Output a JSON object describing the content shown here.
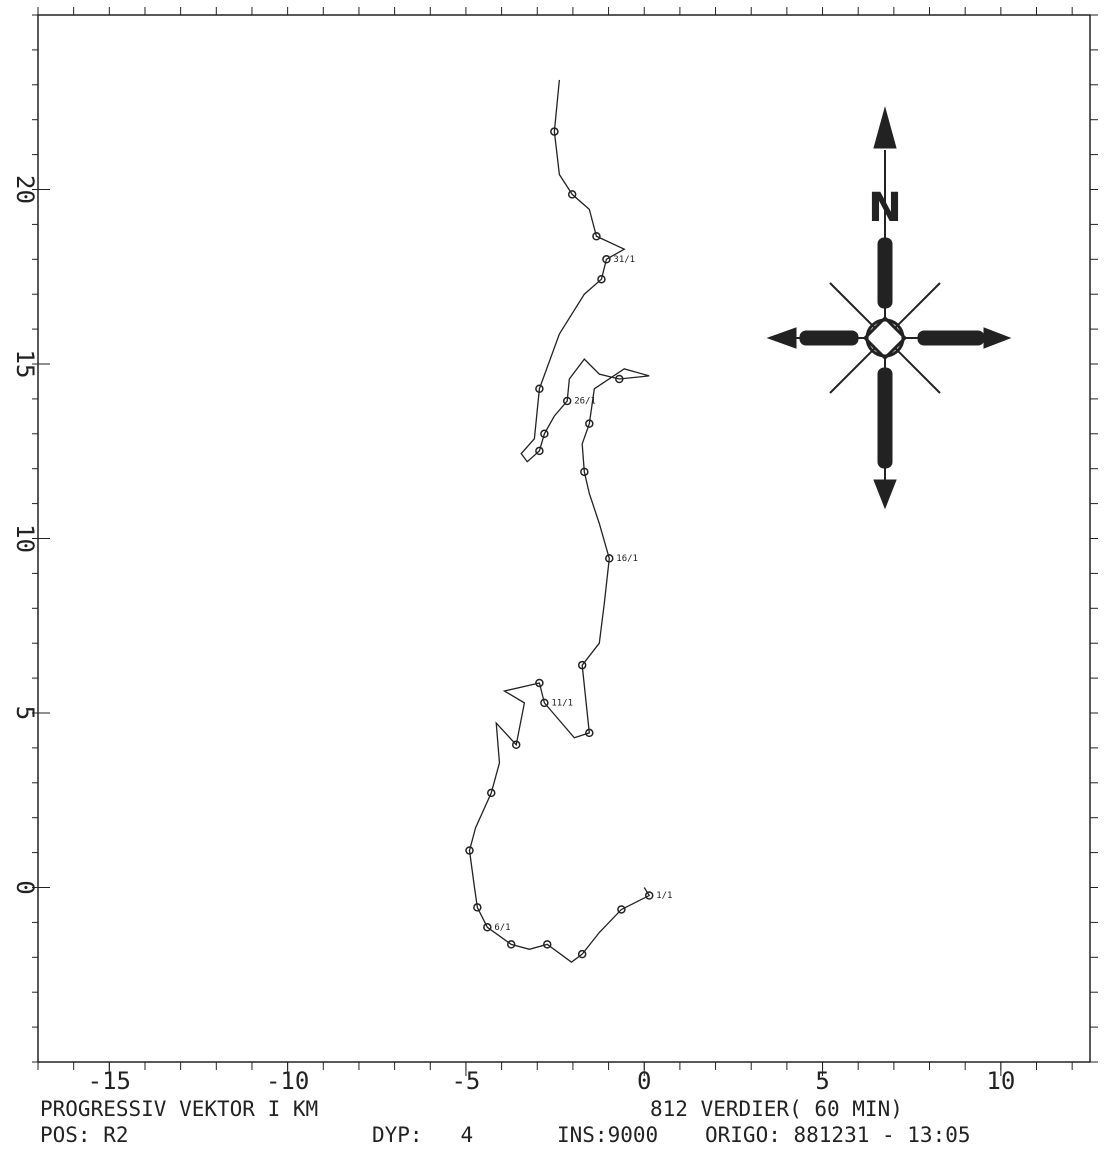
{
  "chart_data": {
    "type": "line",
    "color": "#222",
    "xlim": [
      -17,
      12.5
    ],
    "ylim": [
      -5,
      25
    ],
    "xticks": [
      -15,
      -10,
      -5,
      0,
      5,
      10
    ],
    "yticks": [
      0,
      5,
      10,
      15,
      20
    ],
    "x": [
      0,
      0.14,
      -0.64,
      -1.26,
      -1.74,
      -2.04,
      -2.72,
      -3.22,
      -3.73,
      -4.4,
      -4.68,
      -4.76,
      -4.9,
      -4.73,
      -4.29,
      -4.06,
      -4.15,
      -3.59,
      -3.36,
      -3.92,
      -2.94,
      -2.8,
      -1.96,
      -1.54,
      -1.74,
      -1.26,
      -1.12,
      -0.98,
      -1.26,
      -1.54,
      -1.68,
      -1.74,
      -1.54,
      -1.4,
      -0.56,
      0.14,
      -0.7,
      -1.26,
      -1.68,
      -2.1,
      -2.16,
      -2.52,
      -2.8,
      -2.94,
      -3.28,
      -3.45,
      -3.08,
      -2.94,
      -2.38,
      -1.68,
      -1.2,
      -1.06,
      -0.56,
      -1.34,
      -1.54,
      -2.02,
      -2.38,
      -2.52,
      -2.38
    ],
    "y": [
      0,
      -0.23,
      -0.63,
      -1.29,
      -1.91,
      -2.14,
      -1.63,
      -1.77,
      -1.63,
      -1.14,
      -0.57,
      0,
      1.06,
      1.71,
      2.71,
      3.57,
      4.71,
      4.09,
      5.29,
      5.63,
      5.86,
      5.29,
      4.29,
      4.43,
      6.37,
      7,
      8.14,
      9.43,
      10.43,
      11.29,
      11.91,
      12.71,
      13.29,
      14.29,
      14.86,
      14.66,
      14.57,
      14.71,
      15.14,
      14.57,
      13.94,
      13.51,
      13,
      12.51,
      12.2,
      12.43,
      12.86,
      14.29,
      15.86,
      17,
      17.43,
      18,
      18.29,
      18.66,
      19.43,
      19.86,
      20.43,
      21.66,
      23.14
    ],
    "markers": {
      "x": [
        0.14,
        -0.64,
        -1.74,
        -2.72,
        -3.73,
        -4.4,
        -4.68,
        -4.9,
        -4.29,
        -3.59,
        -2.94,
        -2.8,
        -1.54,
        -1.74,
        -0.98,
        -1.68,
        -1.54,
        -2.16,
        -2.8,
        -2.94,
        -2.94,
        -1.06,
        -1.34,
        -2.02,
        -2.52,
        -1.2,
        -0.7
      ],
      "y": [
        -0.23,
        -0.63,
        -1.91,
        -1.63,
        -1.63,
        -1.14,
        -0.57,
        1.06,
        2.71,
        4.09,
        5.86,
        5.29,
        4.43,
        6.37,
        9.43,
        11.91,
        13.29,
        13.94,
        13,
        12.51,
        14.29,
        18,
        18.66,
        19.86,
        21.66,
        17.43,
        14.57
      ],
      "labels": [
        "1/1",
        null,
        null,
        null,
        null,
        "6/1",
        null,
        null,
        null,
        null,
        null,
        "11/1",
        null,
        null,
        "16/1",
        null,
        null,
        "26/1",
        null,
        null,
        null,
        "31/1",
        null,
        null,
        null,
        null,
        null
      ]
    },
    "footer": {
      "title": "PROGRESSIV VEKTOR I KM",
      "count": "812 VERDIER( 60 MIN)",
      "pos": "POS: R2",
      "depth": "DYP:   4",
      "ins": "INS:9000",
      "origin": "ORIGO: 881231 - 13:05"
    }
  }
}
